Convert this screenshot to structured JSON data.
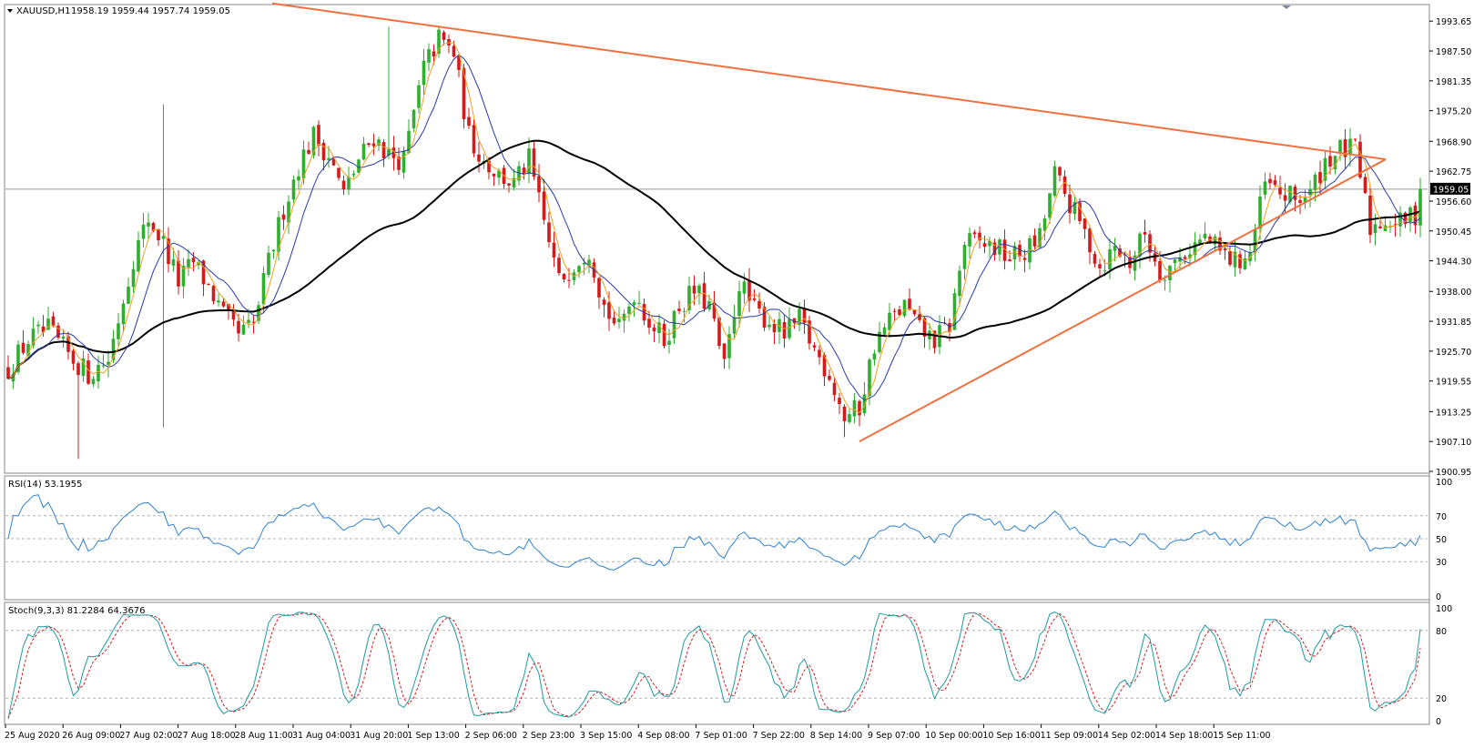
{
  "header": {
    "symbol": "XAUUSD,H1",
    "ohlc": "1958.19 1959.44 1957.74 1959.05"
  },
  "rsi_label": "RSI(14) 53.1955",
  "stoch_label": "Stoch(9,3,3) 81.2284 64.3676",
  "colors": {
    "bull": "#2fae2f",
    "bear": "#d41a1a",
    "trendline": "#f07040",
    "ma_fast": "#f0a020",
    "ma_mid": "#2a3aa8",
    "ma_slow": "#000000",
    "rsi": "#2f82d0",
    "stoch_main": "#1f9aa0",
    "stoch_signal": "#d42020",
    "grid": "#b0b0b0"
  },
  "chart_data": [
    {
      "type": "candlestick",
      "title": "XAUUSD,H1",
      "ylim": [
        1900.95,
        1996.5
      ],
      "yticks": [
        "1993.65",
        "1987.50",
        "1981.35",
        "1975.20",
        "1968.90",
        "1962.75",
        "1956.60",
        "1950.45",
        "1944.30",
        "1938.00",
        "1931.85",
        "1925.70",
        "1919.55",
        "1913.25",
        "1907.10",
        "1900.95"
      ],
      "current_price": "1959.05",
      "x_labels": [
        "25 Aug 2020",
        "26 Aug 09:00",
        "27 Aug 02:00",
        "27 Aug 18:00",
        "28 Aug 11:00",
        "31 Aug 04:00",
        "31 Aug 20:00",
        "1 Sep 13:00",
        "2 Sep 06:00",
        "2 Sep 23:00",
        "3 Sep 15:00",
        "4 Sep 08:00",
        "7 Sep 01:00",
        "7 Sep 22:00",
        "8 Sep 14:00",
        "9 Sep 07:00",
        "10 Sep 00:00",
        "10 Sep 16:00",
        "11 Sep 09:00",
        "14 Sep 02:00",
        "14 Sep 18:00",
        "15 Sep 11:00"
      ],
      "close_path": [
        [
          0,
          1922
        ],
        [
          4,
          1928
        ],
        [
          8,
          1930
        ],
        [
          12,
          1925
        ],
        [
          16,
          1921
        ],
        [
          20,
          1924
        ],
        [
          25,
          1945
        ],
        [
          28,
          1953
        ],
        [
          31,
          1948
        ],
        [
          34,
          1940
        ],
        [
          37,
          1944
        ],
        [
          40,
          1939
        ],
        [
          43,
          1933
        ],
        [
          46,
          1929
        ],
        [
          49,
          1931
        ],
        [
          52,
          1944
        ],
        [
          55,
          1955
        ],
        [
          58,
          1964
        ],
        [
          61,
          1970
        ],
        [
          64,
          1966
        ],
        [
          67,
          1958
        ],
        [
          70,
          1965
        ],
        [
          73,
          1970
        ],
        [
          76,
          1966
        ],
        [
          79,
          1965
        ],
        [
          83,
          1984
        ],
        [
          86,
          1990
        ],
        [
          89,
          1987
        ],
        [
          92,
          1970
        ],
        [
          95,
          1965
        ],
        [
          98,
          1962
        ],
        [
          101,
          1960
        ],
        [
          104,
          1965
        ],
        [
          107,
          1952
        ],
        [
          110,
          1940
        ],
        [
          113,
          1944
        ],
        [
          116,
          1947
        ],
        [
          119,
          1935
        ],
        [
          122,
          1930
        ],
        [
          125,
          1938
        ],
        [
          128,
          1932
        ],
        [
          131,
          1928
        ],
        [
          134,
          1935
        ],
        [
          137,
          1938
        ],
        [
          140,
          1935
        ],
        [
          143,
          1922
        ],
        [
          146,
          1940
        ],
        [
          149,
          1934
        ],
        [
          152,
          1932
        ],
        [
          155,
          1929
        ],
        [
          158,
          1932
        ],
        [
          161,
          1926
        ],
        [
          164,
          1921
        ],
        [
          167,
          1912
        ],
        [
          170,
          1914
        ],
        [
          173,
          1927
        ],
        [
          176,
          1932
        ],
        [
          179,
          1935
        ],
        [
          182,
          1930
        ],
        [
          185,
          1928
        ],
        [
          188,
          1931
        ],
        [
          191,
          1948
        ],
        [
          194,
          1948
        ],
        [
          197,
          1947
        ],
        [
          200,
          1945
        ],
        [
          203,
          1946
        ],
        [
          206,
          1949
        ],
        [
          209,
          1962
        ],
        [
          212,
          1956
        ],
        [
          215,
          1950
        ],
        [
          218,
          1943
        ],
        [
          221,
          1947
        ],
        [
          224,
          1944
        ],
        [
          227,
          1950
        ],
        [
          230,
          1942
        ],
        [
          233,
          1944
        ],
        [
          236,
          1947
        ],
        [
          239,
          1949
        ],
        [
          242,
          1946
        ],
        [
          245,
          1944
        ],
        [
          248,
          1946
        ],
        [
          251,
          1960
        ],
        [
          254,
          1958
        ],
        [
          257,
          1957
        ],
        [
          260,
          1958
        ],
        [
          263,
          1965
        ],
        [
          266,
          1967
        ],
        [
          269,
          1967
        ],
        [
          272,
          1951
        ],
        [
          275,
          1953
        ],
        [
          278,
          1952
        ],
        [
          281,
          1954
        ],
        [
          282,
          1959.05
        ]
      ],
      "n_candles": 283,
      "trendlines": [
        {
          "name": "upper",
          "points": [
            [
              0,
              1997.3
            ],
            [
              326,
              1965.2
            ]
          ]
        },
        {
          "name": "lower",
          "points": [
            [
              170,
              1907.1
            ],
            [
              326,
              1965.2
            ]
          ]
        }
      ],
      "moving_averages": [
        {
          "name": "fast",
          "period_hint": "short"
        },
        {
          "name": "mid",
          "period_hint": "medium"
        },
        {
          "name": "slow",
          "period_hint": "long"
        }
      ]
    },
    {
      "type": "line",
      "title": "RSI(14) 53.1955",
      "ylim": [
        0,
        100
      ],
      "yticks": [
        "100",
        "70",
        "50",
        "30",
        "0"
      ],
      "levels": [
        70,
        50,
        30
      ],
      "last_value": 53.1955
    },
    {
      "type": "line",
      "title": "Stoch(9,3,3) 81.2284 64.3676",
      "ylim": [
        0,
        100
      ],
      "yticks": [
        "100",
        "80",
        "20",
        "0"
      ],
      "levels": [
        80,
        20
      ],
      "main_last": 81.2284,
      "signal_last": 64.3676
    }
  ]
}
